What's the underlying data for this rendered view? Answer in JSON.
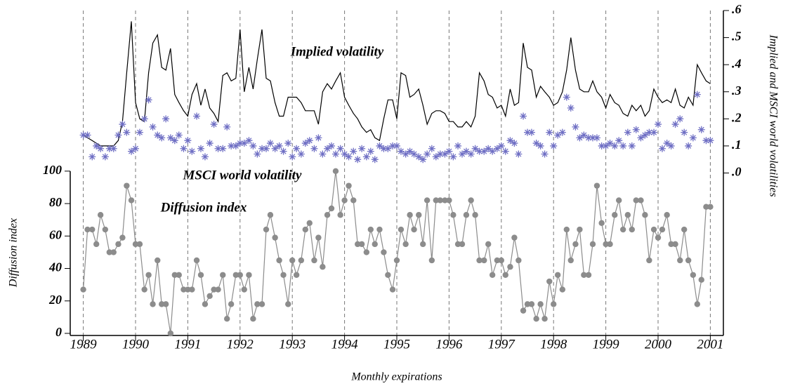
{
  "chart_data": {
    "type": "line",
    "annotations": [
      "Implied volatility",
      "MSCI world volatility",
      "Diffusion index"
    ],
    "xlabel": "Monthly expirations",
    "ylabel": "Diffusion index",
    "y2label": "Implied and MSCI world volatilities",
    "x": [
      1989,
      1989.08,
      1989.17,
      1989.25,
      1989.33,
      1989.42,
      1989.5,
      1989.58,
      1989.67,
      1989.75,
      1989.83,
      1989.92,
      1990,
      1990.08,
      1990.17,
      1990.25,
      1990.33,
      1990.42,
      1990.5,
      1990.58,
      1990.67,
      1990.75,
      1990.83,
      1990.92,
      1991,
      1991.08,
      1991.17,
      1991.25,
      1991.33,
      1991.42,
      1991.5,
      1991.58,
      1991.67,
      1991.75,
      1991.83,
      1991.92,
      1992,
      1992.08,
      1992.17,
      1992.25,
      1992.33,
      1992.42,
      1992.5,
      1992.58,
      1992.67,
      1992.75,
      1992.83,
      1992.92,
      1993,
      1993.08,
      1993.17,
      1993.25,
      1993.33,
      1993.42,
      1993.5,
      1993.58,
      1993.67,
      1993.75,
      1993.83,
      1993.92,
      1994,
      1994.08,
      1994.17,
      1994.25,
      1994.33,
      1994.42,
      1994.5,
      1994.58,
      1994.67,
      1994.75,
      1994.83,
      1994.92,
      1995,
      1995.08,
      1995.17,
      1995.25,
      1995.33,
      1995.42,
      1995.5,
      1995.58,
      1995.67,
      1995.75,
      1995.83,
      1995.92,
      1996,
      1996.08,
      1996.17,
      1996.25,
      1996.33,
      1996.42,
      1996.5,
      1996.58,
      1996.67,
      1996.75,
      1996.83,
      1996.92,
      1997,
      1997.08,
      1997.17,
      1997.25,
      1997.33,
      1997.42,
      1997.5,
      1997.58,
      1997.67,
      1997.75,
      1997.83,
      1997.92,
      1998,
      1998.08,
      1998.17,
      1998.25,
      1998.33,
      1998.42,
      1998.5,
      1998.58,
      1998.67,
      1998.75,
      1998.83,
      1998.92,
      1999,
      1999.08,
      1999.17,
      1999.25,
      1999.33,
      1999.42,
      1999.5,
      1999.58,
      1999.67,
      1999.75,
      1999.83,
      1999.92,
      2000,
      2000.08,
      2000.17,
      2000.25,
      2000.33,
      2000.42,
      2000.5,
      2000.58,
      2000.67,
      2000.75,
      2000.83,
      2000.92,
      2001
    ],
    "series": [
      {
        "name": "Implied volatility",
        "color": "#000000",
        "style": "line",
        "axis": "y2",
        "values": [
          0.14,
          0.13,
          0.12,
          0.11,
          0.1,
          0.1,
          0.1,
          0.1,
          0.12,
          0.19,
          0.37,
          0.56,
          0.26,
          0.2,
          0.19,
          0.37,
          0.48,
          0.51,
          0.39,
          0.38,
          0.46,
          0.29,
          0.26,
          0.23,
          0.21,
          0.29,
          0.33,
          0.25,
          0.31,
          0.24,
          0.22,
          0.19,
          0.36,
          0.37,
          0.34,
          0.35,
          0.53,
          0.3,
          0.39,
          0.31,
          0.42,
          0.53,
          0.35,
          0.34,
          0.26,
          0.21,
          0.21,
          0.28,
          0.28,
          0.28,
          0.26,
          0.23,
          0.23,
          0.23,
          0.18,
          0.3,
          0.33,
          0.31,
          0.34,
          0.37,
          0.28,
          0.25,
          0.22,
          0.2,
          0.17,
          0.15,
          0.16,
          0.13,
          0.12,
          0.2,
          0.27,
          0.27,
          0.2,
          0.37,
          0.36,
          0.28,
          0.29,
          0.31,
          0.25,
          0.18,
          0.22,
          0.23,
          0.23,
          0.22,
          0.19,
          0.19,
          0.17,
          0.17,
          0.19,
          0.17,
          0.21,
          0.37,
          0.34,
          0.29,
          0.28,
          0.24,
          0.25,
          0.21,
          0.31,
          0.25,
          0.26,
          0.48,
          0.39,
          0.38,
          0.28,
          0.32,
          0.3,
          0.28,
          0.25,
          0.26,
          0.3,
          0.38,
          0.5,
          0.38,
          0.31,
          0.3,
          0.3,
          0.34,
          0.3,
          0.28,
          0.24,
          0.29,
          0.26,
          0.25,
          0.22,
          0.21,
          0.25,
          0.23,
          0.25,
          0.21,
          0.23,
          0.31,
          0.28,
          0.26,
          0.27,
          0.26,
          0.31,
          0.25,
          0.24,
          0.28,
          0.25,
          0.4,
          0.37,
          0.34,
          0.33
        ]
      },
      {
        "name": "MSCI world volatility",
        "color": "#6f6fc4",
        "style": "asterisk",
        "axis": "y2",
        "values": [
          0.14,
          0.14,
          0.06,
          0.1,
          0.09,
          0.06,
          0.09,
          0.09,
          0.14,
          0.18,
          0.15,
          0.08,
          0.09,
          0.15,
          0.2,
          0.27,
          0.17,
          0.14,
          0.13,
          0.2,
          0.13,
          0.12,
          0.14,
          0.09,
          0.12,
          0.08,
          0.21,
          0.09,
          0.06,
          0.11,
          0.18,
          0.09,
          0.09,
          0.17,
          0.1,
          0.1,
          0.11,
          0.11,
          0.12,
          0.1,
          0.07,
          0.09,
          0.09,
          0.11,
          0.09,
          0.1,
          0.08,
          0.11,
          0.06,
          0.09,
          0.07,
          0.11,
          0.12,
          0.09,
          0.13,
          0.07,
          0.09,
          0.1,
          0.07,
          0.09,
          0.07,
          0.06,
          0.08,
          0.05,
          0.09,
          0.06,
          0.08,
          0.05,
          0.1,
          0.09,
          0.09,
          0.1,
          0.1,
          0.08,
          0.07,
          0.08,
          0.07,
          0.06,
          0.05,
          0.07,
          0.09,
          0.06,
          0.07,
          0.07,
          0.08,
          0.06,
          0.1,
          0.07,
          0.08,
          0.07,
          0.09,
          0.08,
          0.08,
          0.09,
          0.08,
          0.09,
          0.1,
          0.08,
          0.12,
          0.11,
          0.07,
          0.21,
          0.15,
          0.15,
          0.11,
          0.1,
          0.07,
          0.15,
          0.1,
          0.14,
          0.15,
          0.28,
          0.24,
          0.17,
          0.13,
          0.14,
          0.13,
          0.13,
          0.13,
          0.1,
          0.1,
          0.11,
          0.1,
          0.12,
          0.1,
          0.15,
          0.1,
          0.16,
          0.13,
          0.14,
          0.15,
          0.15,
          0.18,
          0.09,
          0.11,
          0.1,
          0.18,
          0.2,
          0.15,
          0.1,
          0.13,
          0.29,
          0.16,
          0.12,
          0.12
        ]
      },
      {
        "name": "Diffusion index",
        "color": "#8c8c8c",
        "style": "line-dots",
        "values": [
          27,
          64,
          64,
          55,
          73,
          64,
          50,
          50,
          55,
          59,
          91,
          82,
          55,
          55,
          27,
          36,
          18,
          45,
          18,
          18,
          0,
          36,
          36,
          27,
          27,
          27,
          45,
          36,
          18,
          23,
          27,
          27,
          36,
          9,
          18,
          36,
          36,
          27,
          36,
          9,
          18,
          18,
          64,
          73,
          59,
          45,
          36,
          18,
          45,
          36,
          45,
          64,
          68,
          45,
          59,
          41,
          73,
          77,
          100,
          73,
          82,
          91,
          82,
          55,
          55,
          50,
          64,
          55,
          64,
          50,
          36,
          27,
          45,
          64,
          55,
          73,
          64,
          73,
          55,
          82,
          45,
          82,
          82,
          82,
          82,
          73,
          55,
          55,
          73,
          82,
          73,
          45,
          45,
          55,
          36,
          45,
          45,
          36,
          41,
          59,
          45,
          14,
          18,
          18,
          9,
          18,
          9,
          32,
          18,
          36,
          27,
          64,
          45,
          55,
          64,
          36,
          36,
          55,
          91,
          68,
          55,
          55,
          73,
          82,
          64,
          73,
          64,
          82,
          82,
          73,
          45,
          64,
          59,
          64,
          73,
          55,
          55,
          45,
          64,
          45,
          36,
          18,
          33,
          78,
          78
        ]
      }
    ],
    "xlim": [
      1988.75,
      2001.25
    ],
    "xticks": [
      1989,
      1990,
      1991,
      1992,
      1993,
      1994,
      1995,
      1996,
      1997,
      1998,
      1999,
      2000,
      2001
    ],
    "ylim": [
      -1.3,
      199
    ],
    "yticks": [
      0,
      20,
      40,
      60,
      80,
      100
    ],
    "y2lim": [
      -0.6,
      0.6
    ],
    "y2ticks": [
      {
        "value": 0,
        "label": ".0"
      },
      {
        "value": 0.1,
        "label": ".1"
      },
      {
        "value": 0.2,
        "label": ".2"
      },
      {
        "value": 0.3,
        "label": ".3"
      },
      {
        "value": 0.4,
        "label": ".4"
      },
      {
        "value": 0.5,
        "label": ".5"
      },
      {
        "value": 0.6,
        "label": ".6"
      }
    ],
    "x_grid": true
  }
}
